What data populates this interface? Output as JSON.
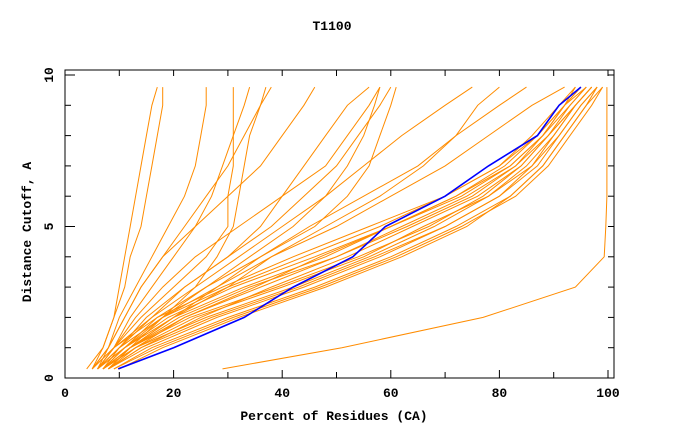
{
  "chart_data": {
    "type": "line",
    "title": "T1100",
    "xlabel": "Percent of Residues (CA)",
    "ylabel": "Distance Cutoff, A",
    "xlim": [
      0,
      100
    ],
    "ylim": [
      0,
      10
    ],
    "xticks": [
      "0",
      "20",
      "40",
      "60",
      "80",
      "100"
    ],
    "yticks": [
      "0",
      "5",
      "10"
    ],
    "grid": false,
    "colors": {
      "models": "#ff8c00",
      "highlight": "#0000ff"
    },
    "cutoffs": [
      0.3,
      1,
      2,
      3,
      4,
      5,
      6,
      7,
      8,
      9,
      9.6
    ],
    "highlight_series": {
      "name": "highlighted model",
      "x": [
        9.8,
        20,
        33,
        42,
        53,
        59,
        70,
        78,
        87,
        91,
        95
      ]
    },
    "series": [
      {
        "x": [
          7,
          12,
          22,
          36,
          50,
          62,
          74,
          83,
          88,
          92,
          95
        ]
      },
      {
        "x": [
          6,
          11,
          20,
          33,
          48,
          60,
          72,
          82,
          88,
          93,
          96
        ]
      },
      {
        "x": [
          8,
          14,
          25,
          38,
          52,
          64,
          76,
          84,
          89,
          94,
          97
        ]
      },
      {
        "x": [
          7,
          13,
          24,
          40,
          55,
          66,
          78,
          86,
          90,
          94,
          97
        ]
      },
      {
        "x": [
          6,
          10,
          18,
          30,
          44,
          58,
          70,
          80,
          87,
          92,
          95
        ]
      },
      {
        "x": [
          8,
          15,
          28,
          44,
          58,
          70,
          80,
          87,
          91,
          95,
          98
        ]
      },
      {
        "x": [
          9,
          16,
          30,
          46,
          60,
          72,
          82,
          88,
          92,
          96,
          98
        ]
      },
      {
        "x": [
          7,
          12,
          21,
          34,
          50,
          63,
          75,
          83,
          89,
          93,
          96
        ]
      },
      {
        "x": [
          6,
          11,
          19,
          31,
          46,
          60,
          73,
          82,
          88,
          92,
          94
        ]
      },
      {
        "x": [
          8,
          13,
          26,
          42,
          56,
          68,
          78,
          85,
          90,
          94,
          97
        ]
      },
      {
        "x": [
          10,
          18,
          32,
          48,
          62,
          74,
          82,
          88,
          92,
          96,
          99
        ]
      },
      {
        "x": [
          7,
          12,
          23,
          39,
          54,
          67,
          77,
          84,
          89,
          94,
          97
        ]
      },
      {
        "x": [
          5,
          9,
          17,
          29,
          42,
          56,
          70,
          80,
          86,
          91,
          94
        ]
      },
      {
        "x": [
          8,
          14,
          27,
          43,
          57,
          70,
          80,
          86,
          91,
          95,
          98
        ]
      },
      {
        "x": [
          7,
          13,
          22,
          35,
          47,
          60,
          72,
          81,
          87,
          92,
          96
        ]
      },
      {
        "x": [
          9,
          17,
          31,
          47,
          61,
          73,
          83,
          89,
          93,
          97,
          99
        ]
      },
      {
        "x": [
          6,
          10,
          18,
          26,
          36,
          45,
          55,
          65,
          72,
          80,
          85
        ]
      },
      {
        "x": [
          5,
          9,
          16,
          24,
          32,
          40,
          48,
          55,
          62,
          70,
          75
        ]
      },
      {
        "x": [
          7,
          12,
          20,
          30,
          38,
          50,
          60,
          70,
          78,
          86,
          92
        ]
      },
      {
        "x": [
          5,
          7,
          9,
          10,
          11,
          12,
          13,
          14,
          15,
          16,
          17
        ]
      },
      {
        "x": [
          4,
          7,
          9,
          11,
          12,
          14,
          15,
          16,
          17,
          18,
          18
        ]
      },
      {
        "x": [
          6,
          8,
          10,
          13,
          16,
          19,
          22,
          24,
          25,
          26,
          26
        ]
      },
      {
        "x": [
          6,
          9,
          12,
          16,
          20,
          24,
          27,
          29,
          31,
          33,
          34
        ]
      },
      {
        "x": [
          5,
          8,
          11,
          14,
          18,
          22,
          26,
          30,
          33,
          36,
          38
        ]
      },
      {
        "x": [
          6,
          9,
          14,
          20,
          26,
          30,
          30,
          31,
          31,
          31,
          31
        ]
      },
      {
        "x": [
          7,
          10,
          15,
          22,
          30,
          36,
          40,
          44,
          48,
          52,
          56
        ]
      },
      {
        "x": [
          7,
          11,
          17,
          26,
          34,
          42,
          48,
          52,
          55,
          57,
          58
        ]
      },
      {
        "x": [
          6,
          10,
          16,
          22,
          30,
          38,
          44,
          50,
          54,
          58,
          60
        ]
      },
      {
        "x": [
          8,
          12,
          20,
          28,
          36,
          46,
          52,
          56,
          58,
          60,
          61
        ]
      },
      {
        "x": [
          6,
          9,
          13,
          18,
          24,
          32,
          40,
          48,
          52,
          56,
          58
        ]
      },
      {
        "x": [
          7,
          11,
          18,
          24,
          28,
          31,
          32,
          33,
          34,
          36,
          37
        ]
      },
      {
        "x": [
          8,
          12,
          18,
          28,
          38,
          48,
          58,
          66,
          72,
          76,
          80
        ]
      },
      {
        "x": [
          5,
          8,
          11,
          14,
          18,
          24,
          30,
          36,
          40,
          44,
          46
        ]
      },
      {
        "x": [
          29,
          51,
          77,
          94,
          99.3,
          99.6,
          99.8,
          99.8,
          99.8,
          99.8,
          99.8
        ]
      }
    ]
  }
}
